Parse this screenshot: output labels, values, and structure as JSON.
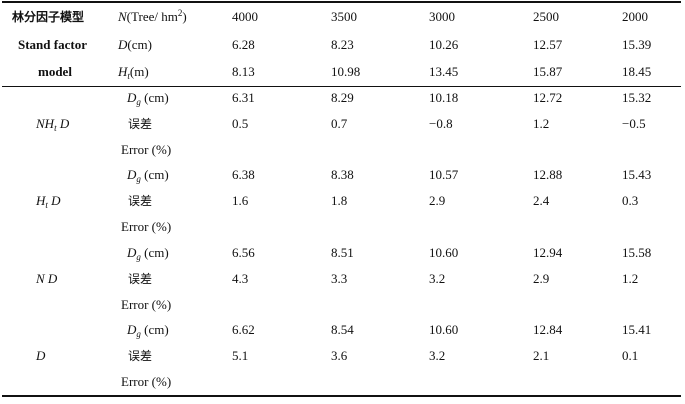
{
  "header": {
    "col0": [
      "林分因子模型",
      "Stand factor",
      "model"
    ],
    "col1": [
      {
        "pre": "N",
        "post": "(Tree/ hm",
        "sup": "2",
        "tail": ")"
      },
      {
        "pre": "D",
        "post": "(cm)"
      },
      {
        "pre": "H",
        "sub": "t",
        "post": "(m)"
      }
    ],
    "values": [
      [
        "4000",
        "3500",
        "3000",
        "2500",
        "2000"
      ],
      [
        "6.28",
        "8.23",
        "10.26",
        "12.57",
        "15.39"
      ],
      [
        "8.13",
        "10.98",
        "13.45",
        "15.87",
        "18.45"
      ]
    ]
  },
  "groups": [
    {
      "model": "NH",
      "model_sub": "t",
      "model_tail": " D",
      "dg": [
        "6.31",
        "8.29",
        "10.18",
        "12.72",
        "15.32"
      ],
      "err": [
        "0.5",
        "0.7",
        "−0.8",
        "1.2",
        "−0.5"
      ]
    },
    {
      "model": "H",
      "model_sub": "t",
      "model_tail": " D",
      "dg": [
        "6.38",
        "8.38",
        "10.57",
        "12.88",
        "15.43"
      ],
      "err": [
        "1.6",
        "1.8",
        "2.9",
        "2.4",
        "0.3"
      ]
    },
    {
      "model": "N",
      "model_sub": "",
      "model_tail": "   D",
      "dg": [
        "6.56",
        "8.51",
        "10.60",
        "12.94",
        "15.58"
      ],
      "err": [
        "4.3",
        "3.3",
        "3.2",
        "2.9",
        "1.2"
      ]
    },
    {
      "model": "D",
      "model_sub": "",
      "model_tail": "",
      "dg": [
        "6.62",
        "8.54",
        "10.60",
        "12.84",
        "15.41"
      ],
      "err": [
        "5.1",
        "3.6",
        "3.2",
        "2.1",
        "0.1"
      ]
    }
  ],
  "labels": {
    "dg_var": "D",
    "dg_sub": "g",
    "dg_unit": " (cm)",
    "err_cn": "误差",
    "err_en": "Error (%)"
  }
}
